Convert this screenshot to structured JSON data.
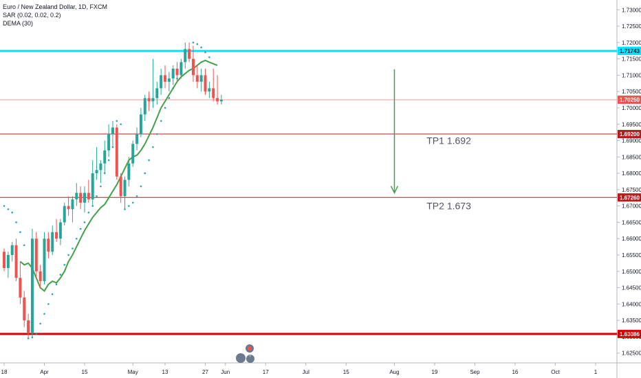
{
  "legend": {
    "title": "Euro / New Zealand Dollar, 1D, FXCM",
    "sar": "SAR (0.02, 0.02, 0.2)",
    "dema": "DEMA (30)"
  },
  "colors": {
    "up": "#26a69a",
    "down": "#ef5350",
    "dema": "#43a047",
    "sar": "#26a6b0",
    "resistance": "#00e5ff",
    "support_major": "#d50000",
    "target": "#b71c1c",
    "current": "#ef5350",
    "arrow": "#43a047"
  },
  "chart_data": {
    "type": "candlestick",
    "symbol": "EURNZD",
    "ylim": [
      1.622,
      1.733
    ],
    "y_ticks": [
      "1.73000",
      "1.72500",
      "1.72000",
      "1.71500",
      "1.71000",
      "1.70500",
      "1.70000",
      "1.69500",
      "1.69000",
      "1.68500",
      "1.68000",
      "1.67500",
      "1.67000",
      "1.66500",
      "1.66000",
      "1.65500",
      "1.65000",
      "1.64500",
      "1.64000",
      "1.63500",
      "1.63000",
      "1.62500"
    ],
    "x_ticks": [
      {
        "label": "18",
        "bar": 0
      },
      {
        "label": "Apr",
        "bar": 10
      },
      {
        "label": "15",
        "bar": 20
      },
      {
        "label": "May",
        "bar": 32
      },
      {
        "label": "13",
        "bar": 40
      },
      {
        "label": "27",
        "bar": 50
      },
      {
        "label": "Jun",
        "bar": 55
      },
      {
        "label": "17",
        "bar": 65
      },
      {
        "label": "Jul",
        "bar": 75
      },
      {
        "label": "15",
        "bar": 85
      },
      {
        "label": "Aug",
        "bar": 97
      },
      {
        "label": "19",
        "bar": 107
      },
      {
        "label": "Sep",
        "bar": 117
      },
      {
        "label": "16",
        "bar": 127
      },
      {
        "label": "Oct",
        "bar": 137
      },
      {
        "label": "1",
        "bar": 147
      }
    ],
    "candles": [
      [
        1.656,
        1.657,
        1.65,
        1.651
      ],
      [
        1.651,
        1.656,
        1.648,
        1.655
      ],
      [
        1.655,
        1.659,
        1.653,
        1.658
      ],
      [
        1.658,
        1.66,
        1.647,
        1.648
      ],
      [
        1.648,
        1.653,
        1.64,
        1.642
      ],
      [
        1.642,
        1.644,
        1.633,
        1.635
      ],
      [
        1.635,
        1.637,
        1.6295,
        1.631
      ],
      [
        1.631,
        1.663,
        1.63,
        1.66
      ],
      [
        1.66,
        1.662,
        1.648,
        1.65
      ],
      [
        1.65,
        1.652,
        1.645,
        1.647
      ],
      [
        1.647,
        1.662,
        1.646,
        1.66
      ],
      [
        1.66,
        1.662,
        1.654,
        1.656
      ],
      [
        1.656,
        1.664,
        1.655,
        1.662
      ],
      [
        1.662,
        1.666,
        1.659,
        1.66
      ],
      [
        1.66,
        1.666,
        1.658,
        1.665
      ],
      [
        1.665,
        1.671,
        1.664,
        1.67
      ],
      [
        1.67,
        1.673,
        1.667,
        1.669
      ],
      [
        1.669,
        1.673,
        1.665,
        1.672
      ],
      [
        1.672,
        1.677,
        1.67,
        1.674
      ],
      [
        1.674,
        1.676,
        1.669,
        1.671
      ],
      [
        1.671,
        1.676,
        1.668,
        1.674
      ],
      [
        1.674,
        1.678,
        1.671,
        1.672
      ],
      [
        1.672,
        1.684,
        1.67,
        1.68
      ],
      [
        1.68,
        1.688,
        1.678,
        1.681
      ],
      [
        1.681,
        1.684,
        1.677,
        1.683
      ],
      [
        1.683,
        1.69,
        1.68,
        1.687
      ],
      [
        1.687,
        1.695,
        1.685,
        1.692
      ],
      [
        1.692,
        1.696,
        1.688,
        1.694
      ],
      [
        1.694,
        1.695,
        1.678,
        1.679
      ],
      [
        1.679,
        1.68,
        1.671,
        1.673
      ],
      [
        1.673,
        1.679,
        1.669,
        1.678
      ],
      [
        1.678,
        1.685,
        1.676,
        1.683
      ],
      [
        1.683,
        1.69,
        1.682,
        1.689
      ],
      [
        1.689,
        1.694,
        1.687,
        1.692
      ],
      [
        1.692,
        1.7,
        1.691,
        1.698
      ],
      [
        1.698,
        1.704,
        1.696,
        1.703
      ],
      [
        1.703,
        1.705,
        1.699,
        1.702
      ],
      [
        1.702,
        1.715,
        1.7,
        1.703
      ],
      [
        1.703,
        1.708,
        1.701,
        1.706
      ],
      [
        1.706,
        1.712,
        1.704,
        1.71
      ],
      [
        1.71,
        1.713,
        1.706,
        1.708
      ],
      [
        1.708,
        1.711,
        1.705,
        1.709
      ],
      [
        1.709,
        1.713,
        1.707,
        1.712
      ],
      [
        1.712,
        1.714,
        1.708,
        1.71
      ],
      [
        1.71,
        1.715,
        1.709,
        1.714
      ],
      [
        1.714,
        1.72,
        1.712,
        1.718
      ],
      [
        1.718,
        1.72,
        1.714,
        1.715
      ],
      [
        1.715,
        1.719,
        1.708,
        1.71
      ],
      [
        1.71,
        1.713,
        1.706,
        1.708
      ],
      [
        1.708,
        1.712,
        1.705,
        1.71
      ],
      [
        1.71,
        1.712,
        1.704,
        1.705
      ],
      [
        1.705,
        1.708,
        1.703,
        1.706
      ],
      [
        1.706,
        1.712,
        1.702,
        1.703
      ],
      [
        1.703,
        1.71,
        1.701,
        1.702
      ],
      [
        1.702,
        1.704,
        1.701,
        1.7025
      ]
    ],
    "dema": [
      1.653,
      1.652,
      1.6525,
      1.651,
      1.648,
      1.645,
      1.644,
      1.646,
      1.647,
      1.6465,
      1.648,
      1.65,
      1.653,
      1.655,
      1.6575,
      1.66,
      1.6625,
      1.6645,
      1.6665,
      1.668,
      1.6695,
      1.6705,
      1.6725,
      1.6745,
      1.6765,
      1.679,
      1.6815,
      1.684,
      1.685,
      1.6855,
      1.687,
      1.689,
      1.6915,
      1.694,
      1.697,
      1.7,
      1.702,
      1.704,
      1.706,
      1.708,
      1.7095,
      1.7105,
      1.7115,
      1.712,
      1.713,
      1.714,
      1.7145,
      1.714,
      1.7135,
      1.713
    ],
    "sar": [
      [
        0,
        1.67
      ],
      [
        1,
        1.669
      ],
      [
        2,
        1.668
      ],
      [
        3,
        1.665
      ],
      [
        4,
        1.662
      ],
      [
        5,
        1.658
      ],
      [
        6,
        1.6295
      ],
      [
        7,
        1.6298
      ],
      [
        8,
        1.631
      ],
      [
        9,
        1.634
      ],
      [
        10,
        1.637
      ],
      [
        11,
        1.64
      ],
      [
        12,
        1.643
      ],
      [
        13,
        1.646
      ],
      [
        14,
        1.649
      ],
      [
        15,
        1.652
      ],
      [
        16,
        1.655
      ],
      [
        17,
        1.657
      ],
      [
        18,
        1.66
      ],
      [
        19,
        1.663
      ],
      [
        20,
        1.665
      ],
      [
        21,
        1.668
      ],
      [
        22,
        1.67
      ],
      [
        23,
        1.673
      ],
      [
        24,
        1.676
      ],
      [
        25,
        1.68
      ],
      [
        26,
        1.684
      ],
      [
        27,
        1.688
      ],
      [
        28,
        1.696
      ],
      [
        29,
        1.695
      ],
      [
        30,
        1.669
      ],
      [
        31,
        1.67
      ],
      [
        32,
        1.671
      ],
      [
        33,
        1.673
      ],
      [
        34,
        1.676
      ],
      [
        35,
        1.68
      ],
      [
        36,
        1.684
      ],
      [
        37,
        1.688
      ],
      [
        38,
        1.692
      ],
      [
        39,
        1.696
      ],
      [
        40,
        1.7
      ],
      [
        41,
        1.703
      ],
      [
        42,
        1.706
      ],
      [
        43,
        1.709
      ],
      [
        44,
        1.712
      ],
      [
        45,
        1.715
      ],
      [
        46,
        1.717
      ],
      [
        47,
        1.72
      ],
      [
        48,
        1.7195
      ],
      [
        49,
        1.7185
      ],
      [
        50,
        1.717
      ],
      [
        51,
        1.7155
      ]
    ],
    "levels": [
      {
        "name": "resistance",
        "value": 1.71743,
        "label": "1.71743",
        "color": "#00e5ff",
        "width": 3
      },
      {
        "name": "current",
        "value": 1.7025,
        "label": "1.70250",
        "color": "#ef9a9a",
        "width": 1
      },
      {
        "name": "tp1-level",
        "value": 1.692,
        "label": "1.69200",
        "color": "#b71c1c",
        "width": 1
      },
      {
        "name": "tp2-level",
        "value": 1.6726,
        "label": "1.67260",
        "color": "#b71c1c",
        "width": 1
      },
      {
        "name": "support",
        "value": 1.63086,
        "label": "1.63086",
        "color": "#d50000",
        "width": 3
      }
    ],
    "annotations": [
      {
        "name": "tp1-label",
        "text": "TP1 1.692",
        "bar": 105,
        "y": 1.689
      },
      {
        "name": "tp2-label",
        "text": "TP2 1.673",
        "bar": 105,
        "y": 1.669
      }
    ],
    "arrow": {
      "bar": 97,
      "from": 1.7118,
      "to": 1.674
    }
  }
}
